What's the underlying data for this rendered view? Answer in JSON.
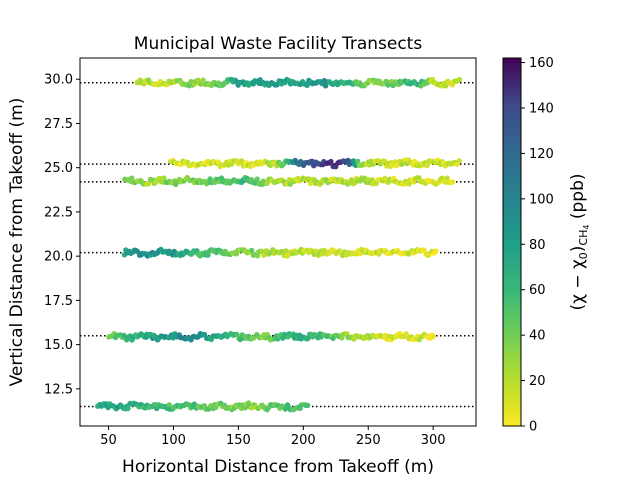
{
  "chart_data": {
    "type": "scatter",
    "title": "Municipal Waste Facility Transects",
    "xlabel": "Horizontal Distance from Takeoff (m)",
    "ylabel": "Vertical Distance from Takeoff (m)",
    "colorbar_label_prefix": "(χ − χ",
    "colorbar_label_sub0": "0",
    "colorbar_label_mid": ")",
    "colorbar_label_sub1": "CH",
    "colorbar_label_sub2": "4",
    "colorbar_label_unit": " (ppb)",
    "xlim": [
      28,
      333
    ],
    "ylim": [
      10.4,
      31.2
    ],
    "x_ticks": [
      50,
      100,
      150,
      200,
      250,
      300
    ],
    "y_ticks": [
      12.5,
      15.0,
      17.5,
      20.0,
      22.5,
      25.0,
      27.5,
      30.0
    ],
    "y_tick_labels": [
      "12.5",
      "15.0",
      "17.5",
      "20.0",
      "22.5",
      "25.0",
      "27.5",
      "30.0"
    ],
    "colorbar_ticks": [
      0,
      20,
      40,
      60,
      80,
      100,
      120,
      140,
      160
    ],
    "colorbar_range": [
      0,
      162
    ],
    "colormap": "viridis_r",
    "reference_lines": [
      11.5,
      15.5,
      20.2,
      24.2,
      25.2,
      29.8
    ],
    "grid": false,
    "transects": [
      {
        "y": 29.8,
        "x_range": [
          72,
          320
        ],
        "profile": [
          [
            72,
            20
          ],
          [
            90,
            15
          ],
          [
            105,
            25
          ],
          [
            120,
            30
          ],
          [
            140,
            40
          ],
          [
            150,
            70
          ],
          [
            175,
            75
          ],
          [
            195,
            65
          ],
          [
            210,
            80
          ],
          [
            225,
            70
          ],
          [
            240,
            50
          ],
          [
            255,
            25
          ],
          [
            270,
            40
          ],
          [
            285,
            60
          ],
          [
            300,
            20
          ],
          [
            320,
            15
          ]
        ]
      },
      {
        "y": 25.25,
        "x_range": [
          98,
          320
        ],
        "profile": [
          [
            98,
            10
          ],
          [
            150,
            10
          ],
          [
            178,
            15
          ],
          [
            185,
            45
          ],
          [
            195,
            95
          ],
          [
            205,
            120
          ],
          [
            215,
            130
          ],
          [
            225,
            145
          ],
          [
            235,
            120
          ],
          [
            245,
            20
          ],
          [
            290,
            10
          ],
          [
            320,
            15
          ]
        ]
      },
      {
        "y": 24.25,
        "x_range": [
          63,
          315
        ],
        "profile": [
          [
            63,
            40
          ],
          [
            80,
            20
          ],
          [
            95,
            35
          ],
          [
            110,
            30
          ],
          [
            140,
            45
          ],
          [
            155,
            50
          ],
          [
            175,
            25
          ],
          [
            200,
            15
          ],
          [
            240,
            20
          ],
          [
            270,
            10
          ],
          [
            315,
            10
          ]
        ]
      },
      {
        "y": 20.2,
        "x_range": [
          62,
          302
        ],
        "profile": [
          [
            62,
            70
          ],
          [
            80,
            80
          ],
          [
            100,
            75
          ],
          [
            115,
            55
          ],
          [
            145,
            35
          ],
          [
            170,
            25
          ],
          [
            200,
            15
          ],
          [
            250,
            10
          ],
          [
            302,
            10
          ]
        ]
      },
      {
        "y": 15.45,
        "x_range": [
          50,
          300
        ],
        "profile": [
          [
            50,
            30
          ],
          [
            65,
            55
          ],
          [
            80,
            65
          ],
          [
            100,
            80
          ],
          [
            115,
            85
          ],
          [
            130,
            70
          ],
          [
            150,
            50
          ],
          [
            170,
            30
          ],
          [
            190,
            60
          ],
          [
            205,
            55
          ],
          [
            225,
            35
          ],
          [
            245,
            20
          ],
          [
            270,
            10
          ],
          [
            300,
            10
          ]
        ]
      },
      {
        "y": 11.5,
        "x_range": [
          42,
          203
        ],
        "profile": [
          [
            42,
            65
          ],
          [
            60,
            70
          ],
          [
            75,
            55
          ],
          [
            95,
            50
          ],
          [
            115,
            45
          ],
          [
            140,
            35
          ],
          [
            165,
            30
          ],
          [
            185,
            45
          ],
          [
            203,
            40
          ]
        ]
      }
    ]
  }
}
